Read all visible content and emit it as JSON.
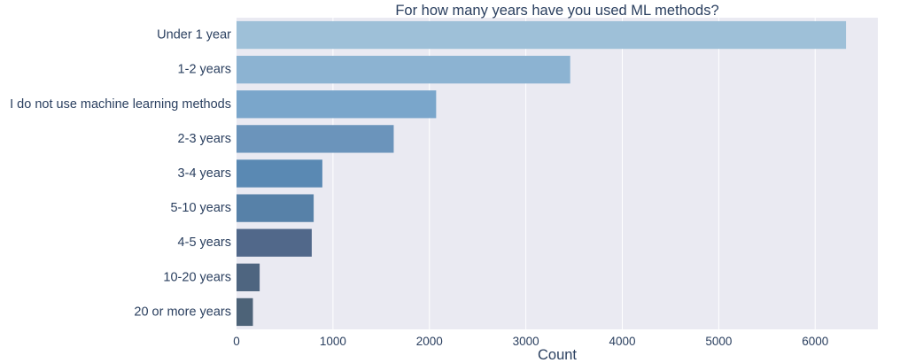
{
  "chart_data": {
    "type": "bar",
    "orientation": "horizontal",
    "title": "For how many years have you used ML methods?",
    "xlabel": "Count",
    "ylabel": "",
    "categories": [
      "Under 1 year",
      "1-2 years",
      "I do not use machine learning methods",
      "2-3 years",
      "3-4 years",
      "5-10 years",
      "4-5 years",
      "10-20 years",
      "20 or more years"
    ],
    "values": [
      6320,
      3460,
      2070,
      1630,
      890,
      800,
      780,
      240,
      170
    ],
    "colors": [
      "#9ec0d8",
      "#8cb3d2",
      "#7aa6cb",
      "#6b94bb",
      "#5a89b3",
      "#5781a8",
      "#51688a",
      "#4e6580",
      "#4d6378"
    ],
    "xlim": [
      0,
      6650
    ],
    "xticks": [
      0,
      1000,
      2000,
      3000,
      4000,
      5000,
      6000
    ],
    "xtick_labels": [
      "0",
      "1000",
      "2000",
      "3000",
      "4000",
      "5000",
      "6000"
    ],
    "grid": true,
    "plot_background": "#eaeaf2",
    "grid_color": "#ffffff",
    "text_color": "#2a3f5f"
  }
}
